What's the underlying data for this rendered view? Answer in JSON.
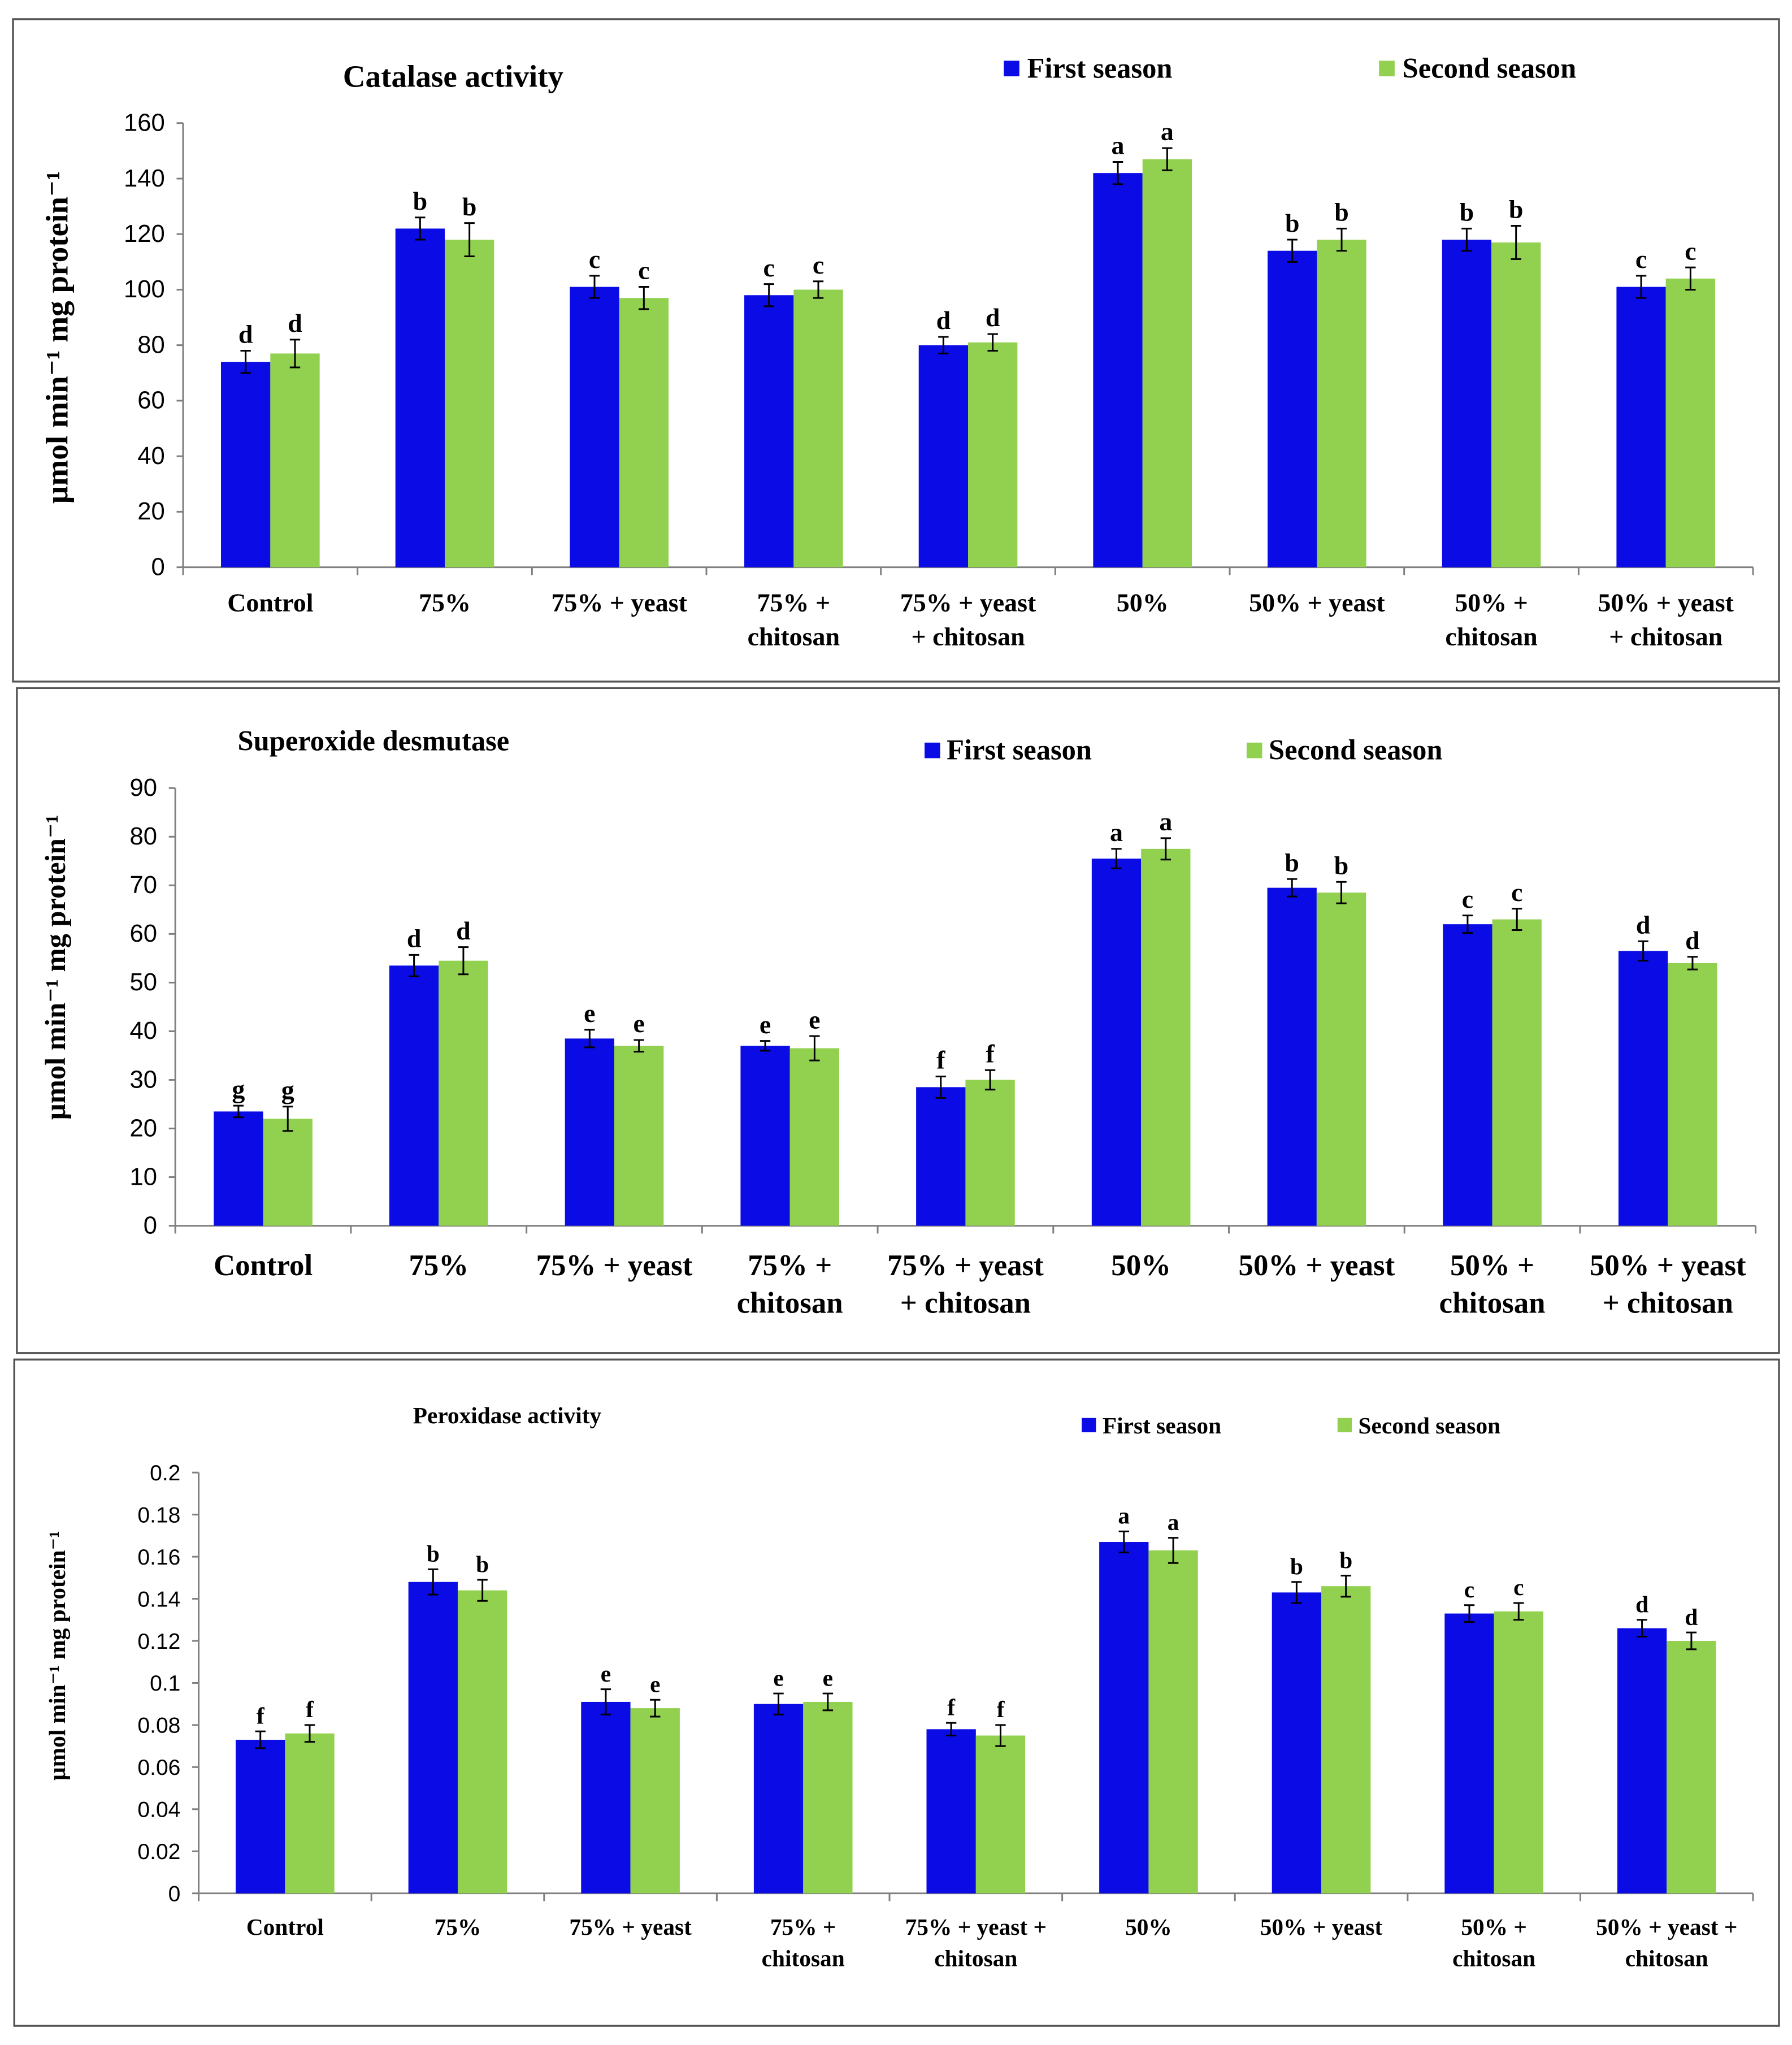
{
  "colors": {
    "first": "#0b0be6",
    "second": "#92d050",
    "axis": "#7f7f7f",
    "frame": "#555555"
  },
  "chart_data": [
    {
      "type": "bar",
      "title": "Catalase activity",
      "ylabel": "µmol min⁻¹ mg protein⁻¹",
      "xlabel": "",
      "ylim": [
        0,
        160
      ],
      "yticks": [
        "0",
        "20",
        "40",
        "60",
        "80",
        "100",
        "120",
        "140",
        "160"
      ],
      "legend": [
        "First season",
        "Second season"
      ],
      "legend_position": "top-right",
      "categories": [
        "Control",
        "75%",
        "75% + yeast",
        "75% + chitosan",
        "75% + yeast + chitosan",
        "50%",
        "50% + yeast",
        "50% + chitosan",
        "50% + yeast + chitosan"
      ],
      "category_lines": [
        [
          "Control"
        ],
        [
          "75%"
        ],
        [
          "75% + yeast"
        ],
        [
          "75% +",
          "chitosan"
        ],
        [
          "75% + yeast",
          "+ chitosan"
        ],
        [
          "50%"
        ],
        [
          "50% + yeast"
        ],
        [
          "50% +",
          "chitosan"
        ],
        [
          "50% + yeast",
          "+ chitosan"
        ]
      ],
      "series": [
        {
          "name": "First season",
          "values": [
            74,
            122,
            101,
            98,
            80,
            142,
            114,
            118,
            101
          ],
          "errors": [
            4,
            4,
            4,
            4,
            3,
            4,
            4,
            4,
            4
          ],
          "letters": [
            "d",
            "b",
            "c",
            "c",
            "d",
            "a",
            "b",
            "b",
            "c"
          ]
        },
        {
          "name": "Second season",
          "values": [
            77,
            118,
            97,
            100,
            81,
            147,
            118,
            117,
            104
          ],
          "errors": [
            5,
            6,
            4,
            3,
            3,
            4,
            4,
            6,
            4
          ],
          "letters": [
            "d",
            "b",
            "c",
            "c",
            "d",
            "a",
            "b",
            "b",
            "c"
          ]
        }
      ]
    },
    {
      "type": "bar",
      "title": "Superoxide desmutase",
      "ylabel": "µmol min⁻¹ mg protein⁻¹",
      "xlabel": "",
      "ylim": [
        0,
        90
      ],
      "yticks": [
        "0",
        "10",
        "20",
        "30",
        "40",
        "50",
        "60",
        "70",
        "80",
        "90"
      ],
      "legend": [
        "First season",
        "Second season"
      ],
      "legend_position": "top-right",
      "categories": [
        "Control",
        "75%",
        "75% + yeast",
        "75% + chitosan",
        "75% + yeast + chitosan",
        "50%",
        "50% + yeast",
        "50% + chitosan",
        "50% + yeast + chitosan"
      ],
      "category_lines": [
        [
          "Control"
        ],
        [
          "75%"
        ],
        [
          "75% + yeast"
        ],
        [
          "75% +",
          "chitosan"
        ],
        [
          "75% + yeast",
          "+ chitosan"
        ],
        [
          "50%"
        ],
        [
          "50% + yeast"
        ],
        [
          "50% +",
          "chitosan"
        ],
        [
          "50% + yeast",
          "+ chitosan"
        ]
      ],
      "series": [
        {
          "name": "First season",
          "values": [
            23.5,
            53.5,
            38.5,
            37,
            28.5,
            75.5,
            69.5,
            62,
            56.5
          ],
          "errors": [
            1.2,
            2.2,
            1.8,
            1.0,
            2.2,
            2.0,
            1.8,
            1.8,
            2.0
          ],
          "letters": [
            "g",
            "d",
            "e",
            "e",
            "f",
            "a",
            "b",
            "c",
            "d"
          ]
        },
        {
          "name": "Second season",
          "values": [
            22,
            54.5,
            37,
            36.5,
            30,
            77.5,
            68.5,
            63,
            54
          ],
          "errors": [
            2.5,
            2.8,
            1.2,
            2.5,
            2.0,
            2.2,
            2.2,
            2.2,
            1.3
          ],
          "letters": [
            "g",
            "d",
            "e",
            "e",
            "f",
            "a",
            "b",
            "c",
            "d"
          ]
        }
      ]
    },
    {
      "type": "bar",
      "title": "Peroxidase activity",
      "ylabel": "µmol min⁻¹ mg protein⁻¹",
      "xlabel": "",
      "ylim": [
        0,
        0.2
      ],
      "yticks": [
        "0",
        "0.02",
        "0.04",
        "0.06",
        "0.08",
        "0.1",
        "0.12",
        "0.14",
        "0.16",
        "0.18",
        "0.2"
      ],
      "legend": [
        "First season",
        "Second season"
      ],
      "legend_position": "top-right",
      "categories": [
        "Control",
        "75%",
        "75% + yeast",
        "75% + chitosan",
        "75% + yeast + chitosan",
        "50%",
        "50% + yeast",
        "50% + chitosan",
        "50% + yeast + chitosan"
      ],
      "category_lines": [
        [
          "Control"
        ],
        [
          "75%"
        ],
        [
          "75% + yeast"
        ],
        [
          "75% +",
          "chitosan"
        ],
        [
          "75% + yeast +",
          "chitosan"
        ],
        [
          "50%"
        ],
        [
          "50% + yeast"
        ],
        [
          "50% +",
          "chitosan"
        ],
        [
          "50% + yeast +",
          "chitosan"
        ]
      ],
      "series": [
        {
          "name": "First season",
          "values": [
            0.073,
            0.148,
            0.091,
            0.09,
            0.078,
            0.167,
            0.143,
            0.133,
            0.126
          ],
          "errors": [
            0.004,
            0.006,
            0.006,
            0.005,
            0.003,
            0.005,
            0.005,
            0.004,
            0.004
          ],
          "letters": [
            "f",
            "b",
            "e",
            "e",
            "f",
            "a",
            "b",
            "c",
            "d"
          ]
        },
        {
          "name": "Second season",
          "values": [
            0.076,
            0.144,
            0.088,
            0.091,
            0.075,
            0.163,
            0.146,
            0.134,
            0.12
          ],
          "errors": [
            0.004,
            0.005,
            0.004,
            0.004,
            0.005,
            0.006,
            0.005,
            0.004,
            0.004
          ],
          "letters": [
            "f",
            "b",
            "e",
            "e",
            "f",
            "a",
            "b",
            "c",
            "d"
          ]
        }
      ]
    }
  ]
}
